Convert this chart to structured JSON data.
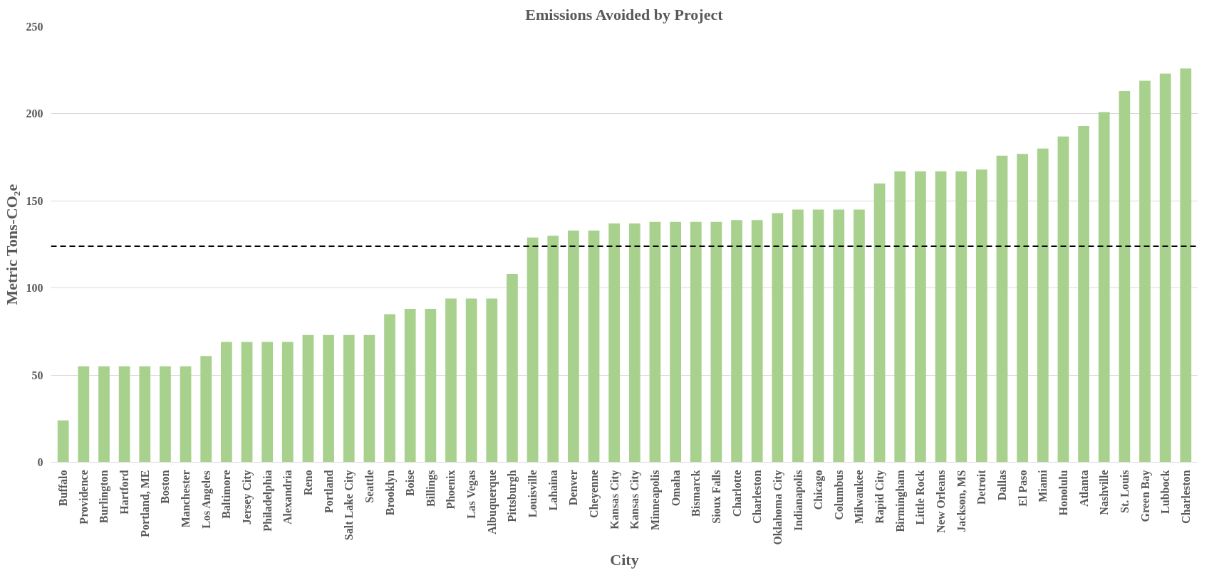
{
  "chart_data": {
    "type": "bar",
    "title": "Emissions Avoided by Project",
    "xlabel": "City",
    "ylabel": "Metric Tons-CO₂e",
    "categories": [
      "Buffalo",
      "Providence",
      "Burlington",
      "Hartford",
      "Portland, ME",
      "Boston",
      "Manchester",
      "Los Angeles",
      "Baltimore",
      "Jersey City",
      "Philadelphia",
      "Alexandria",
      "Reno",
      "Portland",
      "Salt Lake City",
      "Seattle",
      "Brooklyn",
      "Boise",
      "Billings",
      "Phoenix",
      "Las Vegas",
      "Albuquerque",
      "Pittsburgh",
      "Louisville",
      "Lahaina",
      "Denver",
      "Cheyenne",
      "Kansas City",
      "Kansas City",
      "Minneapolis",
      "Omaha",
      "Bismarck",
      "Sioux Falls",
      "Charlotte",
      "Charleston",
      "Oklahoma City",
      "Indianapolis",
      "Chicago",
      "Columbus",
      "Milwaukee",
      "Rapid City",
      "Birmingham",
      "Little Rock",
      "New Orleans",
      "Jackson, MS",
      "Detroit",
      "Dallas",
      "El Paso",
      "Miami",
      "Honolulu",
      "Atlanta",
      "Nashville",
      "St. Louis",
      "Green Bay",
      "Lubbock",
      "Charleston"
    ],
    "values": [
      24,
      55,
      55,
      55,
      55,
      55,
      55,
      61,
      69,
      69,
      69,
      69,
      73,
      73,
      73,
      73,
      85,
      88,
      88,
      94,
      94,
      94,
      108,
      129,
      130,
      133,
      133,
      137,
      137,
      138,
      138,
      138,
      138,
      139,
      139,
      143,
      145,
      145,
      145,
      145,
      160,
      167,
      167,
      167,
      167,
      168,
      176,
      177,
      180,
      187,
      193,
      201,
      213,
      219,
      223,
      226
    ],
    "color": "#a9d18e",
    "ylim": [
      0,
      250
    ],
    "yticks": [
      0,
      50,
      100,
      150,
      200,
      250
    ],
    "grid": "y",
    "ref_lines": [
      {
        "axis": "y",
        "value": 124,
        "color": "#000000",
        "line_style": "dashed"
      }
    ]
  }
}
